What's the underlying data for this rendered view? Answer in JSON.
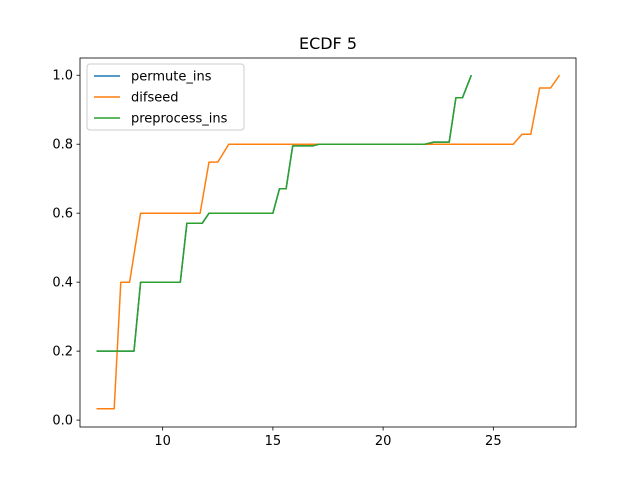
{
  "chart_data": {
    "type": "line",
    "title": "ECDF 5",
    "xlabel": "",
    "ylabel": "",
    "xlim": [
      6.25,
      28.75
    ],
    "ylim": [
      -0.02,
      1.05
    ],
    "xticks": [
      10,
      15,
      20,
      25
    ],
    "yticks": [
      0.0,
      0.2,
      0.4,
      0.6,
      0.8,
      1.0
    ],
    "xtick_labels": [
      "10",
      "15",
      "20",
      "25"
    ],
    "ytick_labels": [
      "0.0",
      "0.2",
      "0.4",
      "0.6",
      "0.8",
      "1.0"
    ],
    "grid": false,
    "legend": {
      "position": "top-left"
    },
    "series": [
      {
        "name": "permute_ins",
        "color": "#1f77b4",
        "x": [
          7.0,
          8.7,
          9.0,
          10.8,
          11.1,
          11.8,
          12.1,
          15.0,
          15.3,
          15.6,
          15.9,
          16.8,
          17.1,
          21.9,
          22.3,
          23.0,
          23.3,
          23.6,
          24.0
        ],
        "y": [
          0.2,
          0.2,
          0.4,
          0.4,
          0.571,
          0.571,
          0.6,
          0.6,
          0.671,
          0.671,
          0.795,
          0.795,
          0.8,
          0.8,
          0.806,
          0.806,
          0.935,
          0.935,
          1.0
        ]
      },
      {
        "name": "difseed",
        "color": "#ff7f0e",
        "x": [
          7.0,
          7.8,
          8.1,
          8.5,
          9.0,
          11.7,
          12.1,
          12.5,
          13.0,
          25.9,
          26.3,
          26.7,
          27.1,
          27.6,
          28.0
        ],
        "y": [
          0.033,
          0.033,
          0.4,
          0.4,
          0.6,
          0.6,
          0.748,
          0.748,
          0.8,
          0.8,
          0.829,
          0.829,
          0.963,
          0.963,
          1.0
        ]
      },
      {
        "name": "preprocess_ins",
        "color": "#2ca02c",
        "x": [
          7.0,
          8.7,
          9.0,
          10.8,
          11.1,
          11.8,
          12.1,
          15.0,
          15.3,
          15.6,
          15.9,
          16.8,
          17.1,
          21.9,
          22.3,
          23.0,
          23.3,
          23.6,
          24.0
        ],
        "y": [
          0.2,
          0.2,
          0.4,
          0.4,
          0.571,
          0.571,
          0.6,
          0.6,
          0.671,
          0.671,
          0.795,
          0.795,
          0.8,
          0.8,
          0.806,
          0.806,
          0.935,
          0.935,
          1.0
        ]
      }
    ]
  }
}
